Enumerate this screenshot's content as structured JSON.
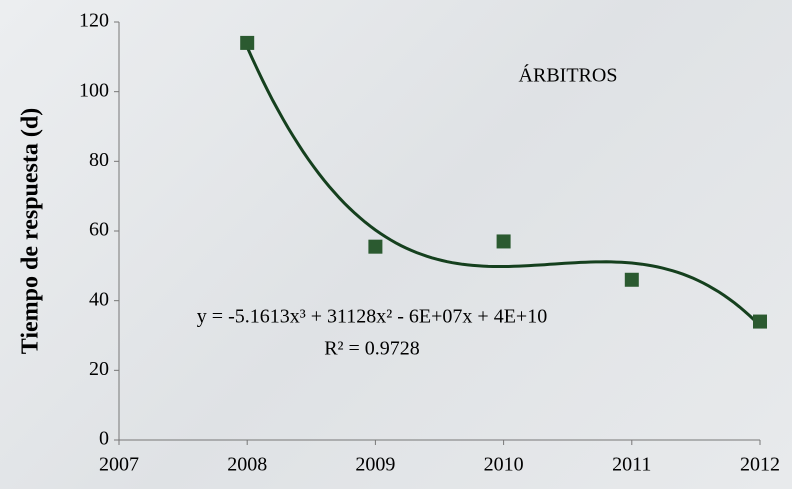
{
  "chart_data": {
    "type": "scatter",
    "y_label": "Tiempo de respuesta (d)",
    "annotations": [
      "ÁRBITROS",
      "y = -5.1613x³ + 31128x² - 6E+07x + 4E+10",
      "R² = 0.9728"
    ],
    "x": [
      2008,
      2009,
      2010,
      2011,
      2012
    ],
    "values": [
      114,
      55.5,
      57,
      46,
      34
    ],
    "color": "#2b5a30",
    "trendline": "polynomial-3",
    "trendline_color": "#15401e",
    "xlim": [
      2007,
      2012
    ],
    "xticks": [
      2007,
      2008,
      2009,
      2010,
      2011,
      2012
    ],
    "ylim": [
      0,
      120
    ],
    "yticks": [
      0,
      20,
      40,
      60,
      80,
      100,
      120
    ]
  }
}
